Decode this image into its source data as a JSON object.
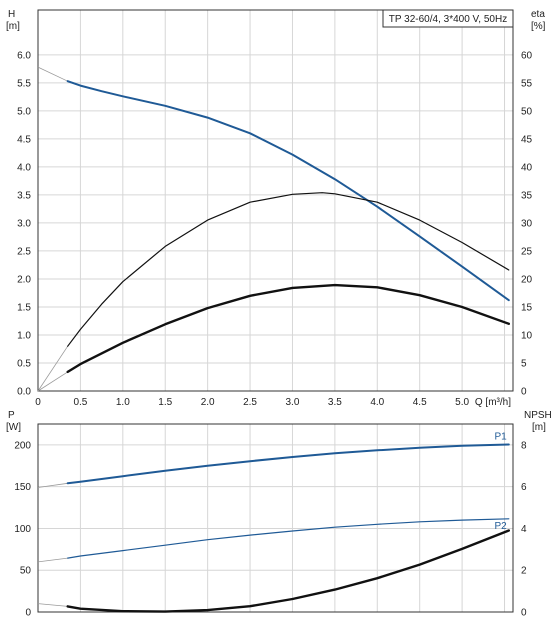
{
  "chart_data": [
    {
      "type": "line",
      "title": "TP 32-60/4, 3*400 V, 50Hz",
      "xlabel": "Q [m³/h]",
      "ylabel_left_name": "H",
      "ylabel_left_unit": "[m]",
      "ylabel_right_name": "eta",
      "ylabel_right_unit": "[%]",
      "xlim": [
        0,
        5.6
      ],
      "ylim_left": [
        0,
        6.8
      ],
      "ylim_right": [
        0,
        68
      ],
      "x_ticks": [
        "0",
        "0.5",
        "1.0",
        "1.5",
        "2.0",
        "2.5",
        "3.0",
        "3.5",
        "4.0",
        "4.5",
        "5.0"
      ],
      "y_left_ticks": [
        "0.0",
        "0.5",
        "1.0",
        "1.5",
        "2.0",
        "2.5",
        "3.0",
        "3.5",
        "4.0",
        "4.5",
        "5.0",
        "5.5",
        "6.0"
      ],
      "y_right_ticks": [
        "0",
        "5",
        "10",
        "15",
        "20",
        "25",
        "30",
        "35",
        "40",
        "45",
        "50",
        "55",
        "60"
      ],
      "grid": true,
      "series": [
        {
          "axis": "left",
          "color": "#1f5a96",
          "width": 2,
          "x": [
            0.35,
            0.5,
            0.75,
            1.0,
            1.5,
            2.0,
            2.5,
            3.0,
            3.5,
            4.0,
            4.5,
            5.0,
            5.55
          ],
          "y": [
            5.53,
            5.45,
            5.35,
            5.26,
            5.09,
            4.88,
            4.6,
            4.22,
            3.78,
            3.29,
            2.76,
            2.22,
            1.62
          ],
          "extension": {
            "x": [
              0,
              0.35
            ],
            "y": [
              5.78,
              5.53
            ]
          }
        },
        {
          "axis": "right",
          "color": "#111111",
          "width": 1.2,
          "x": [
            0.35,
            0.5,
            0.75,
            1.0,
            1.5,
            2.0,
            2.5,
            3.0,
            3.35,
            3.5,
            4.0,
            4.5,
            5.0,
            5.55
          ],
          "y": [
            8.0,
            11.0,
            15.5,
            19.5,
            25.8,
            30.5,
            33.7,
            35.1,
            35.4,
            35.2,
            33.7,
            30.5,
            26.5,
            21.6
          ],
          "extension": {
            "x": [
              0,
              0.35
            ],
            "y": [
              0,
              8.0
            ]
          }
        },
        {
          "axis": "right",
          "color": "#111111",
          "width": 2.4,
          "x": [
            0.35,
            0.5,
            1.0,
            1.5,
            2.0,
            2.5,
            3.0,
            3.5,
            4.0,
            4.5,
            5.0,
            5.55
          ],
          "y": [
            3.4,
            4.8,
            8.6,
            11.9,
            14.8,
            17.0,
            18.4,
            18.9,
            18.5,
            17.1,
            15.0,
            12.0
          ],
          "extension": {
            "x": [
              0,
              0.35
            ],
            "y": [
              0,
              3.4
            ]
          }
        }
      ]
    },
    {
      "type": "line",
      "xlim": [
        0,
        5.6
      ],
      "ylabel_left_name": "P",
      "ylabel_left_unit": "[W]",
      "ylabel_right_name": "NPSH",
      "ylabel_right_unit": "[m]",
      "ylim_left": [
        0,
        225
      ],
      "ylim_right": [
        0,
        9
      ],
      "y_left_ticks": [
        "0",
        "50",
        "100",
        "150",
        "200"
      ],
      "y_right_ticks": [
        "0",
        "2",
        "4",
        "6",
        "8"
      ],
      "grid": true,
      "series": [
        {
          "name": "P1",
          "axis": "left",
          "color": "#1f5a96",
          "width": 2,
          "x": [
            0.35,
            0.5,
            1.0,
            1.5,
            2.0,
            2.5,
            3.0,
            3.5,
            4.0,
            4.5,
            5.0,
            5.55
          ],
          "y": [
            154,
            156,
            162.5,
            169,
            175,
            180.5,
            185.5,
            190,
            193.5,
            196.5,
            199,
            200.5
          ],
          "extension": {
            "x": [
              0,
              0.35
            ],
            "y": [
              149,
              154
            ]
          }
        },
        {
          "name": "P2",
          "axis": "left",
          "color": "#1f5a96",
          "width": 1.2,
          "x": [
            0.35,
            0.5,
            1.0,
            1.5,
            2.0,
            2.5,
            3.0,
            3.5,
            4.0,
            4.5,
            5.0,
            5.55
          ],
          "y": [
            64.5,
            67,
            73.5,
            80,
            86.5,
            92,
            97,
            101.5,
            105,
            108,
            110,
            111.5
          ],
          "extension": {
            "x": [
              0,
              0.35
            ],
            "y": [
              60,
              64.5
            ]
          }
        },
        {
          "axis": "right",
          "color": "#111111",
          "width": 2.4,
          "x": [
            0.35,
            0.5,
            1.0,
            1.5,
            2.0,
            2.5,
            3.0,
            3.5,
            4.0,
            4.5,
            5.0,
            5.55
          ],
          "y": [
            0.27,
            0.16,
            0.04,
            0.02,
            0.09,
            0.28,
            0.62,
            1.07,
            1.62,
            2.27,
            3.02,
            3.9
          ],
          "extension": {
            "x": [
              0,
              0.35
            ],
            "y": [
              0.4,
              0.27
            ]
          }
        }
      ]
    }
  ]
}
